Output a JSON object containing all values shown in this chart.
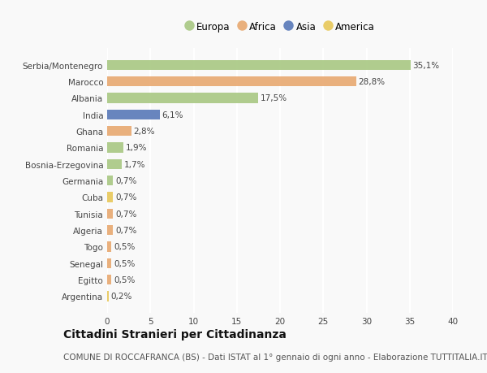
{
  "categories": [
    "Serbia/Montenegro",
    "Marocco",
    "Albania",
    "India",
    "Ghana",
    "Romania",
    "Bosnia-Erzegovina",
    "Germania",
    "Cuba",
    "Tunisia",
    "Algeria",
    "Togo",
    "Senegal",
    "Egitto",
    "Argentina"
  ],
  "values": [
    35.1,
    28.8,
    17.5,
    6.1,
    2.8,
    1.9,
    1.7,
    0.7,
    0.7,
    0.7,
    0.7,
    0.5,
    0.5,
    0.5,
    0.2
  ],
  "labels": [
    "35,1%",
    "28,8%",
    "17,5%",
    "6,1%",
    "2,8%",
    "1,9%",
    "1,7%",
    "0,7%",
    "0,7%",
    "0,7%",
    "0,7%",
    "0,5%",
    "0,5%",
    "0,5%",
    "0,2%"
  ],
  "continents": [
    "Europa",
    "Africa",
    "Europa",
    "Asia",
    "Africa",
    "Europa",
    "Europa",
    "Europa",
    "America",
    "Africa",
    "Africa",
    "Africa",
    "Africa",
    "Africa",
    "America"
  ],
  "continent_colors": {
    "Europa": "#a8c882",
    "Africa": "#e8a870",
    "Asia": "#5878b8",
    "America": "#e8c858"
  },
  "legend_order": [
    "Europa",
    "Africa",
    "Asia",
    "America"
  ],
  "title": "Cittadini Stranieri per Cittadinanza",
  "subtitle": "COMUNE DI ROCCAFRANCA (BS) - Dati ISTAT al 1° gennaio di ogni anno - Elaborazione TUTTITALIA.IT",
  "xlim": [
    0,
    40
  ],
  "xticks": [
    0,
    5,
    10,
    15,
    20,
    25,
    30,
    35,
    40
  ],
  "background_color": "#f9f9f9",
  "grid_color": "#ffffff",
  "title_fontsize": 10,
  "subtitle_fontsize": 7.5,
  "label_fontsize": 7.5,
  "tick_fontsize": 7.5,
  "legend_fontsize": 8.5
}
